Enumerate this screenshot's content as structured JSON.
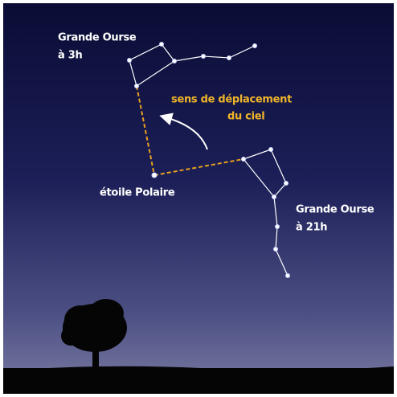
{
  "labels": {
    "ursa_3h": {
      "name": "Grande Ourse",
      "time": "à 3h"
    },
    "motion": {
      "line1": "sens de déplacement",
      "line2": "du ciel"
    },
    "polaris": "étoile Polaire",
    "ursa_21h": {
      "name": "Grande Ourse",
      "time": "à 21h"
    }
  }
}
